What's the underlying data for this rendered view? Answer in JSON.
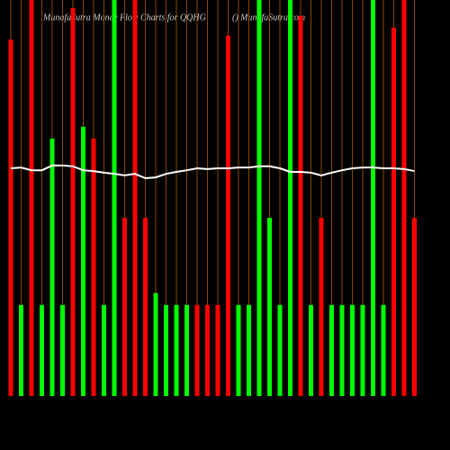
{
  "chart_data": {
    "type": "bar",
    "title": "MunafaSutra Money Flow Charts for QQHG",
    "subtitle": "() MunafaSutra.com",
    "categories": [
      null,
      null,
      null,
      null,
      null,
      null,
      null,
      null,
      null,
      null,
      null,
      null,
      null,
      null,
      null,
      null,
      null,
      null,
      null,
      null,
      null,
      null,
      null,
      null,
      null,
      null,
      null,
      null,
      null,
      null,
      null,
      null,
      null,
      null,
      null,
      null,
      null,
      null,
      null,
      null
    ],
    "series": [
      {
        "values": [
          90,
          23,
          100,
          23,
          65,
          23,
          98,
          68,
          65,
          23,
          100,
          45,
          100,
          45,
          26,
          23,
          23,
          23,
          23,
          23,
          23,
          91,
          23,
          23,
          100,
          45,
          23,
          100,
          96,
          23,
          45,
          23,
          23,
          23,
          23,
          100,
          23,
          93,
          100,
          45
        ],
        "colors": [
          "#ff0000",
          "#00ff00",
          "#ff0000",
          "#00ff00",
          "#00ff00",
          "#00ff00",
          "#ff0000",
          "#00ff00",
          "#ff0000",
          "#00ff00",
          "#00ff00",
          "#ff0000",
          "#ff0000",
          "#ff0000",
          "#00ff00",
          "#00ff00",
          "#00ff00",
          "#00ff00",
          "#ff0000",
          "#ff0000",
          "#ff0000",
          "#ff0000",
          "#00ff00",
          "#00ff00",
          "#00ff00",
          "#00ff00",
          "#00ff00",
          "#00ff00",
          "#ff0000",
          "#00ff00",
          "#ff0000",
          "#00ff00",
          "#00ff00",
          "#00ff00",
          "#00ff00",
          "#00ff00",
          "#00ff00",
          "#ff0000",
          "#ff0000",
          "#ff0000"
        ]
      },
      {
        "type": "line",
        "color": "#ffffff",
        "values": [
          57.5,
          57.7,
          57.0,
          57.0,
          58.2,
          58.2,
          58.0,
          57.0,
          56.8,
          56.4,
          56.1,
          55.7,
          56.1,
          55.0,
          55.2,
          56.1,
          56.6,
          57.0,
          57.5,
          57.3,
          57.5,
          57.5,
          57.7,
          57.7,
          58.0,
          58.0,
          57.5,
          56.6,
          56.6,
          56.4,
          55.7,
          56.4,
          57.0,
          57.5,
          57.7,
          57.7,
          57.5,
          57.5,
          57.3,
          56.8
        ]
      }
    ],
    "ylim": [
      0,
      100
    ],
    "gridline_color": "#b35900"
  }
}
